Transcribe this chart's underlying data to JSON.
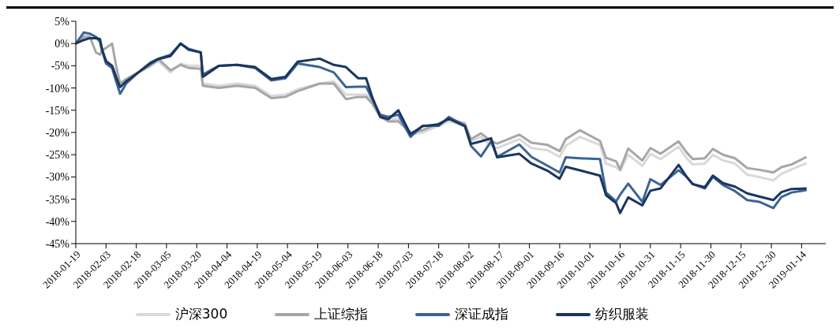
{
  "chart_data": {
    "type": "line",
    "x": [
      "2018-01-19",
      "2018-01-23",
      "2018-01-26",
      "2018-01-29",
      "2018-01-31",
      "2018-02-01",
      "2018-02-03",
      "2018-02-06",
      "2018-02-08",
      "2018-02-10",
      "2018-02-13",
      "2018-02-19",
      "2018-02-25",
      "2018-03-01",
      "2018-03-07",
      "2018-03-12",
      "2018-03-16",
      "2018-03-22",
      "2018-03-23",
      "2018-03-31",
      "2018-04-09",
      "2018-04-18",
      "2018-04-26",
      "2018-05-03",
      "2018-05-09",
      "2018-05-20",
      "2018-05-27",
      "2018-06-02",
      "2018-06-08",
      "2018-06-12",
      "2018-06-15",
      "2018-06-19",
      "2018-06-23",
      "2018-06-28",
      "2018-07-04",
      "2018-07-10",
      "2018-07-18",
      "2018-07-23",
      "2018-07-31",
      "2018-08-03",
      "2018-08-08",
      "2018-08-13",
      "2018-08-16",
      "2018-08-27",
      "2018-09-02",
      "2018-09-10",
      "2018-09-16",
      "2018-09-19",
      "2018-09-26",
      "2018-10-06",
      "2018-10-09",
      "2018-10-14",
      "2018-10-16",
      "2018-10-20",
      "2018-10-27",
      "2018-10-31",
      "2018-11-05",
      "2018-11-14",
      "2018-11-18",
      "2018-11-21",
      "2018-11-27",
      "2018-12-01",
      "2018-12-06",
      "2018-12-12",
      "2018-12-18",
      "2018-12-24",
      "2018-12-31",
      "2019-01-04",
      "2019-01-09",
      "2019-01-16"
    ],
    "series": [
      {
        "name": "沪深300",
        "color": "#d9d9d9",
        "values": [
          0,
          2,
          2.2,
          1.5,
          0,
          -2,
          -3.5,
          -5,
          -6.5,
          -9,
          -8,
          -6.5,
          -5,
          -4,
          -6.5,
          -4.5,
          -5,
          -5,
          -9,
          -9.5,
          -9,
          -9.5,
          -11.8,
          -11.5,
          -10.3,
          -9,
          -8.5,
          -11.5,
          -11.5,
          -11.5,
          -13,
          -16,
          -17,
          -17,
          -20.5,
          -20,
          -18.5,
          -17.5,
          -18.5,
          -22,
          -21,
          -23,
          -23.5,
          -21.5,
          -23.5,
          -24,
          -25.5,
          -23,
          -21,
          -22.8,
          -27,
          -27.8,
          -28.6,
          -25,
          -27.5,
          -24.8,
          -26,
          -23.2,
          -25.8,
          -27.2,
          -27,
          -25,
          -26.3,
          -27,
          -29.5,
          -30,
          -30.8,
          -29.3,
          -28.3,
          -27
        ]
      },
      {
        "name": "上证综指",
        "color": "#a6a6a6",
        "values": [
          0,
          1.5,
          1.5,
          -2,
          -2.5,
          -1.5,
          -1,
          0,
          -5,
          -9,
          -8,
          -6.5,
          -5,
          -3.5,
          -6,
          -4.8,
          -5.5,
          -5.7,
          -9.5,
          -10,
          -9.5,
          -10,
          -12.3,
          -12,
          -10.7,
          -9,
          -9,
          -12.5,
          -12,
          -12,
          -13.5,
          -16.5,
          -17.5,
          -17.5,
          -20,
          -19.5,
          -18,
          -17,
          -18,
          -21.5,
          -20.2,
          -22,
          -22.5,
          -20.5,
          -22.3,
          -22.8,
          -24.2,
          -21.5,
          -19.5,
          -21.9,
          -25.7,
          -26.5,
          -28.3,
          -23.6,
          -26.3,
          -23.5,
          -24.8,
          -22,
          -24.5,
          -26,
          -25.8,
          -23.7,
          -25,
          -25.8,
          -28,
          -28.4,
          -29,
          -27.8,
          -27.2,
          -25.6
        ]
      },
      {
        "name": "深证成指",
        "color": "#3c6496",
        "values": [
          0,
          2.5,
          2.2,
          1.5,
          0.5,
          -1.5,
          -4.5,
          -5.5,
          -8.5,
          -11.3,
          -9,
          -6.5,
          -4.3,
          -3.4,
          -2.5,
          0,
          -1.2,
          -2,
          -7,
          -5,
          -4.8,
          -5.5,
          -8.3,
          -7.8,
          -4.5,
          -5.3,
          -6.5,
          -9.8,
          -9.7,
          -9.7,
          -12.5,
          -16,
          -16.5,
          -16,
          -21,
          -18.5,
          -18.5,
          -16.5,
          -18.5,
          -23,
          -25.4,
          -22,
          -25.5,
          -22.7,
          -25.5,
          -27.5,
          -29,
          -25.6,
          -25.8,
          -26,
          -33.5,
          -35.5,
          -34,
          -31.5,
          -35.6,
          -30.5,
          -31.8,
          -28.5,
          -30,
          -31.6,
          -32.6,
          -30,
          -31.8,
          -33.2,
          -35.2,
          -35.6,
          -37,
          -34.5,
          -33.5,
          -33
        ]
      },
      {
        "name": "纺织服装",
        "color": "#1a365d",
        "values": [
          0,
          0.8,
          1.2,
          1.2,
          1,
          -1.2,
          -4,
          -5,
          -7.5,
          -9.8,
          -8.5,
          -6.5,
          -4.5,
          -3.5,
          -2.8,
          0,
          -1.4,
          -2,
          -7.5,
          -5,
          -4.8,
          -5.3,
          -8,
          -7.5,
          -4.1,
          -3.4,
          -4.8,
          -5.3,
          -7.8,
          -7.8,
          -12,
          -16.5,
          -17,
          -15,
          -20.4,
          -18.6,
          -18.2,
          -16.9,
          -18.6,
          -22.6,
          -22,
          -21.3,
          -25.6,
          -24.8,
          -27,
          -28.6,
          -30.4,
          -27.7,
          -28.5,
          -29.7,
          -34.1,
          -35.9,
          -38.1,
          -34.6,
          -36.4,
          -33.1,
          -32.6,
          -27.3,
          -30,
          -31.6,
          -32.3,
          -29.7,
          -31.4,
          -32.2,
          -33.7,
          -34.4,
          -35.2,
          -33.4,
          -32.7,
          -32.6
        ]
      }
    ],
    "xlim": [
      "2018-01-19",
      "2019-01-26"
    ],
    "xticks": [
      "2018-01-19",
      "2018-02-03",
      "2018-02-18",
      "2018-03-05",
      "2018-03-20",
      "2018-04-04",
      "2018-04-19",
      "2018-05-04",
      "2018-05-19",
      "2018-06-03",
      "2018-06-18",
      "2018-07-03",
      "2018-07-18",
      "2018-08-02",
      "2018-08-17",
      "2018-09-01",
      "2018-09-16",
      "2018-10-01",
      "2018-10-16",
      "2018-10-31",
      "2018-11-15",
      "2018-11-30",
      "2018-12-15",
      "2018-12-30",
      "2019-01-14"
    ],
    "ylim": [
      -45,
      5
    ],
    "yticks": [
      {
        "value": 5,
        "label": "5%"
      },
      {
        "value": 0,
        "label": "0%"
      },
      {
        "value": -5,
        "label": "-5%"
      },
      {
        "value": -10,
        "label": "-10%"
      },
      {
        "value": -15,
        "label": "-15%"
      },
      {
        "value": -20,
        "label": "-20%"
      },
      {
        "value": -25,
        "label": "-25%"
      },
      {
        "value": -30,
        "label": "-30%"
      },
      {
        "value": -35,
        "label": "-35%"
      },
      {
        "value": -40,
        "label": "-40%"
      },
      {
        "value": -45,
        "label": "-45%"
      }
    ],
    "grid": false,
    "legend": "bottom",
    "marker": "none",
    "line_style": "solid"
  }
}
